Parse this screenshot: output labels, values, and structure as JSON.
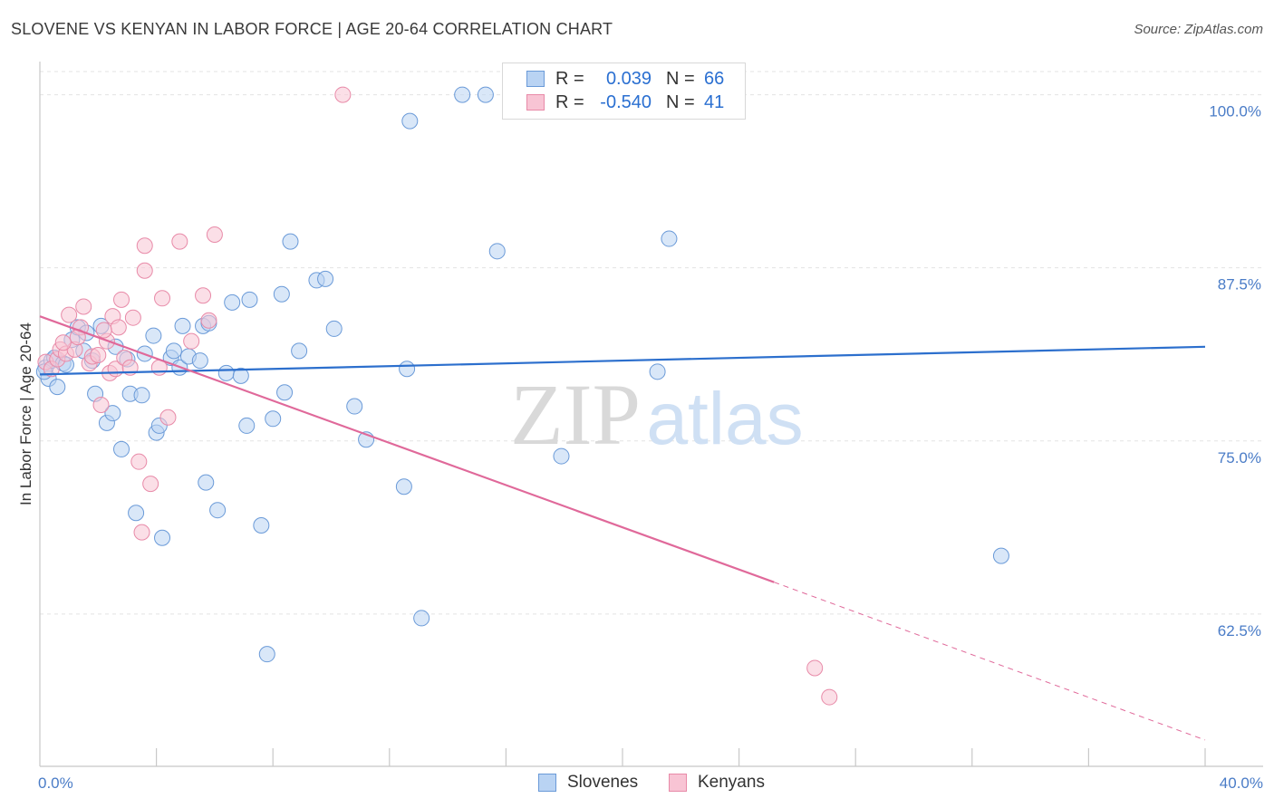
{
  "title": "SLOVENE VS KENYAN IN LABOR FORCE | AGE 20-64 CORRELATION CHART",
  "source": "Source: ZipAtlas.com",
  "watermark": {
    "zip": "ZIP",
    "atlas": "atlas"
  },
  "colors": {
    "slovenes_fill": "#b9d3f3",
    "slovenes_stroke": "#6a9ad8",
    "slovenes_line": "#2c6fcd",
    "kenyans_fill": "#f8c4d4",
    "kenyans_stroke": "#e88aa8",
    "kenyans_line": "#e0699a",
    "tick_text": "#4a7cc7",
    "grid": "#e3e3e3"
  },
  "legend_top": {
    "rows": [
      {
        "series": "slovenes",
        "r_label": "R =",
        "r_value": "0.039",
        "n_label": "N =",
        "n_value": "66"
      },
      {
        "series": "kenyans",
        "r_label": "R =",
        "r_value": "-0.540",
        "n_label": "N =",
        "n_value": "41"
      }
    ]
  },
  "legend_bottom": {
    "slovenes": "Slovenes",
    "kenyans": "Kenyans"
  },
  "chart_data": {
    "type": "scatter",
    "title": "SLOVENE VS KENYAN IN LABOR FORCE | AGE 20-64 CORRELATION CHART",
    "xlabel": "",
    "ylabel": "In Labor Force | Age 20-64",
    "xlim": [
      0,
      40
    ],
    "ylim": [
      51.5,
      102
    ],
    "x_tick_labels": [
      {
        "value": 0,
        "label": "0.0%"
      },
      {
        "value": 40,
        "label": "40.0%"
      }
    ],
    "y_ticks": [
      {
        "value": 100,
        "label": "100.0%"
      },
      {
        "value": 87.5,
        "label": "87.5%"
      },
      {
        "value": 75,
        "label": "75.0%"
      },
      {
        "value": 62.5,
        "label": "62.5%"
      }
    ],
    "x_minor_ticks": [
      4,
      8,
      12,
      16,
      20,
      24,
      28,
      32,
      36,
      40
    ],
    "grid": true,
    "legend_position": "top-center",
    "series": [
      {
        "name": "Slovenes",
        "key": "slovenes",
        "points": [
          [
            0.2,
            80.3
          ],
          [
            0.3,
            79.5
          ],
          [
            0.4,
            80.8
          ],
          [
            0.5,
            81.0
          ],
          [
            0.6,
            78.9
          ],
          [
            0.8,
            80.6
          ],
          [
            0.9,
            80.5
          ],
          [
            1.1,
            82.3
          ],
          [
            1.3,
            83.2
          ],
          [
            1.5,
            81.5
          ],
          [
            1.6,
            82.8
          ],
          [
            1.8,
            80.8
          ],
          [
            1.9,
            78.4
          ],
          [
            2.1,
            83.3
          ],
          [
            2.3,
            76.3
          ],
          [
            2.5,
            77.0
          ],
          [
            2.6,
            81.8
          ],
          [
            2.8,
            74.4
          ],
          [
            3.0,
            80.9
          ],
          [
            3.1,
            78.4
          ],
          [
            3.3,
            69.8
          ],
          [
            3.5,
            78.3
          ],
          [
            3.6,
            81.3
          ],
          [
            3.9,
            82.6
          ],
          [
            4.0,
            75.6
          ],
          [
            4.1,
            76.1
          ],
          [
            4.2,
            68.0
          ],
          [
            4.5,
            81.0
          ],
          [
            4.6,
            81.5
          ],
          [
            4.8,
            80.3
          ],
          [
            4.9,
            83.3
          ],
          [
            5.1,
            81.1
          ],
          [
            5.5,
            80.8
          ],
          [
            5.6,
            83.3
          ],
          [
            5.7,
            72.0
          ],
          [
            5.8,
            83.5
          ],
          [
            6.1,
            70.0
          ],
          [
            6.4,
            79.9
          ],
          [
            6.6,
            85.0
          ],
          [
            6.9,
            79.7
          ],
          [
            7.1,
            76.1
          ],
          [
            7.2,
            85.2
          ],
          [
            7.6,
            68.9
          ],
          [
            7.8,
            59.6
          ],
          [
            8.0,
            76.6
          ],
          [
            8.3,
            85.6
          ],
          [
            8.4,
            78.5
          ],
          [
            8.6,
            89.4
          ],
          [
            8.9,
            81.5
          ],
          [
            9.5,
            86.6
          ],
          [
            9.8,
            86.7
          ],
          [
            10.1,
            83.1
          ],
          [
            10.8,
            77.5
          ],
          [
            11.2,
            75.1
          ],
          [
            12.5,
            71.7
          ],
          [
            12.6,
            80.2
          ],
          [
            12.7,
            98.1
          ],
          [
            13.1,
            62.2
          ],
          [
            14.5,
            100.0
          ],
          [
            15.3,
            100.0
          ],
          [
            15.7,
            88.7
          ],
          [
            17.9,
            73.9
          ],
          [
            21.2,
            80.0
          ],
          [
            21.6,
            89.6
          ],
          [
            33.0,
            66.7
          ],
          [
            0.15,
            80.0
          ]
        ]
      },
      {
        "name": "Kenyans",
        "key": "kenyans",
        "points": [
          [
            0.2,
            80.7
          ],
          [
            0.4,
            80.2
          ],
          [
            0.6,
            80.9
          ],
          [
            0.7,
            81.6
          ],
          [
            0.9,
            81.3
          ],
          [
            1.0,
            84.1
          ],
          [
            1.2,
            81.6
          ],
          [
            1.4,
            83.2
          ],
          [
            1.5,
            84.7
          ],
          [
            1.7,
            80.6
          ],
          [
            1.8,
            81.1
          ],
          [
            2.0,
            81.2
          ],
          [
            2.1,
            77.6
          ],
          [
            2.3,
            82.2
          ],
          [
            2.4,
            79.9
          ],
          [
            2.5,
            84.0
          ],
          [
            2.6,
            80.2
          ],
          [
            2.7,
            83.2
          ],
          [
            2.8,
            85.2
          ],
          [
            2.9,
            81.0
          ],
          [
            3.1,
            80.3
          ],
          [
            3.2,
            83.9
          ],
          [
            3.4,
            73.5
          ],
          [
            3.5,
            68.4
          ],
          [
            3.6,
            89.1
          ],
          [
            3.6,
            87.3
          ],
          [
            3.8,
            71.9
          ],
          [
            4.1,
            80.3
          ],
          [
            4.2,
            85.3
          ],
          [
            4.4,
            76.7
          ],
          [
            4.8,
            89.4
          ],
          [
            5.2,
            82.2
          ],
          [
            5.6,
            85.5
          ],
          [
            5.8,
            83.7
          ],
          [
            6.0,
            89.9
          ],
          [
            10.4,
            100.0
          ],
          [
            26.6,
            58.6
          ],
          [
            27.1,
            56.5
          ],
          [
            1.3,
            82.5
          ],
          [
            0.8,
            82.1
          ],
          [
            2.2,
            83.0
          ]
        ]
      }
    ],
    "trend_lines": [
      {
        "series": "Slovenes",
        "x": [
          0,
          40
        ],
        "y": [
          79.8,
          81.8
        ],
        "style": "solid"
      },
      {
        "series": "Kenyans",
        "x": [
          0,
          25.2
        ],
        "y": [
          84.0,
          64.8
        ],
        "style": "solid"
      },
      {
        "series": "Kenyans",
        "x": [
          25.2,
          40
        ],
        "y": [
          64.8,
          53.4
        ],
        "style": "dashed"
      }
    ]
  }
}
